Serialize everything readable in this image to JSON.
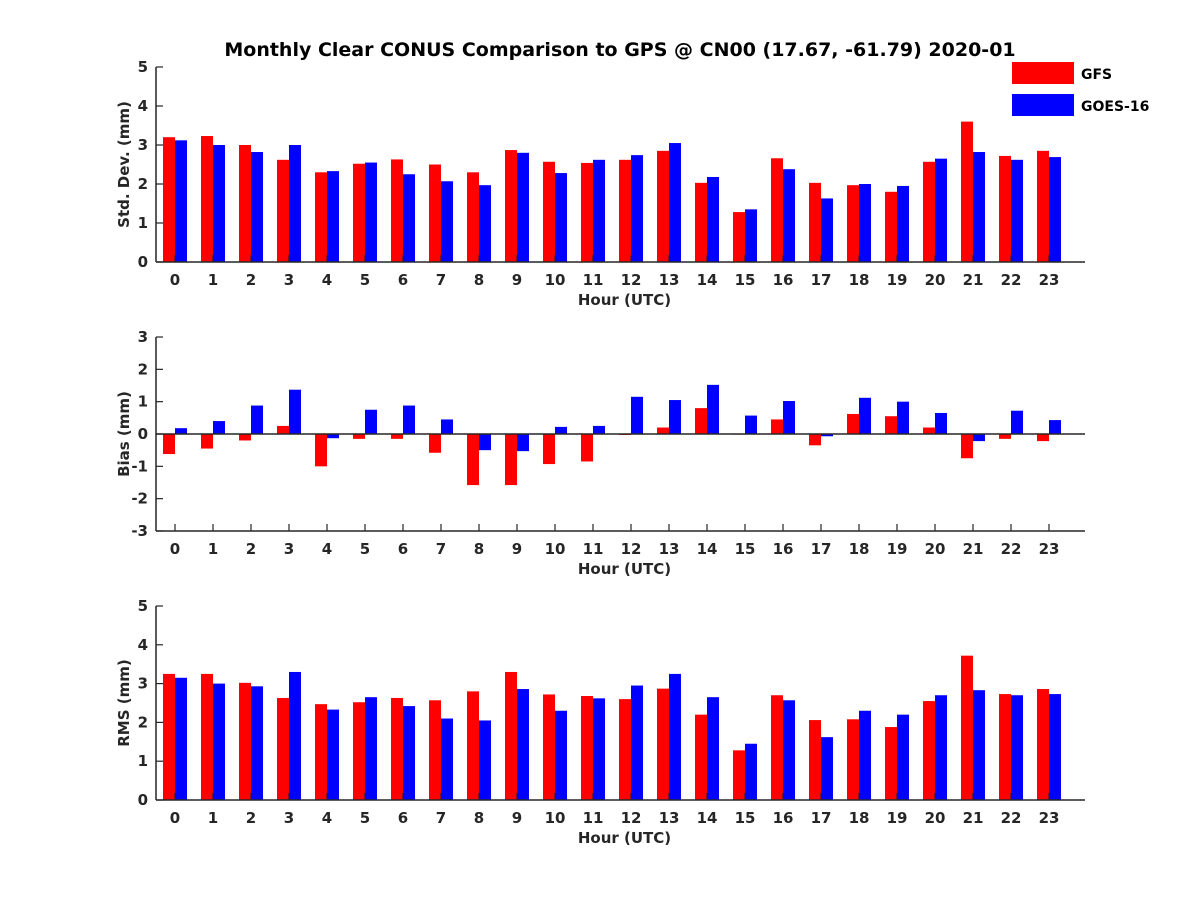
{
  "title": "Monthly Clear CONUS Comparison to GPS @ CN00 (17.67, -61.79) 2020-01",
  "legend": {
    "placement": "top-right",
    "entries": [
      "GFS",
      "GOES-16"
    ]
  },
  "colors": {
    "GFS": "#ff0000",
    "GOES-16": "#0000ff",
    "axis": "#262626"
  },
  "chart_data": [
    {
      "type": "bar",
      "xlabel": "Hour (UTC)",
      "ylabel": "Std. Dev. (mm)",
      "ylim": [
        0,
        5
      ],
      "yticks": [
        "0",
        "1",
        "2",
        "3",
        "4",
        "5"
      ],
      "categories": [
        "0",
        "1",
        "2",
        "3",
        "4",
        "5",
        "6",
        "7",
        "8",
        "9",
        "10",
        "11",
        "12",
        "13",
        "14",
        "15",
        "16",
        "17",
        "18",
        "19",
        "20",
        "21",
        "22",
        "23"
      ],
      "series": [
        {
          "name": "GFS",
          "values": [
            3.2,
            3.23,
            3.0,
            2.62,
            2.3,
            2.52,
            2.63,
            2.5,
            2.3,
            2.87,
            2.57,
            2.54,
            2.62,
            2.85,
            2.03,
            1.28,
            2.66,
            2.03,
            1.97,
            1.8,
            2.57,
            3.6,
            2.72,
            2.85
          ]
        },
        {
          "name": "GOES-16",
          "values": [
            3.12,
            3.0,
            2.82,
            3.0,
            2.33,
            2.55,
            2.25,
            2.07,
            1.97,
            2.8,
            2.28,
            2.62,
            2.74,
            3.05,
            2.18,
            1.35,
            2.38,
            1.63,
            2.0,
            1.95,
            2.65,
            2.82,
            2.62,
            2.69
          ]
        }
      ]
    },
    {
      "type": "bar",
      "xlabel": "Hour (UTC)",
      "ylabel": "Bias (mm)",
      "ylim": [
        -3,
        3
      ],
      "yticks": [
        "-3",
        "-2",
        "-1",
        "0",
        "1",
        "2",
        "3"
      ],
      "categories": [
        "0",
        "1",
        "2",
        "3",
        "4",
        "5",
        "6",
        "7",
        "8",
        "9",
        "10",
        "11",
        "12",
        "13",
        "14",
        "15",
        "16",
        "17",
        "18",
        "19",
        "20",
        "21",
        "22",
        "23"
      ],
      "series": [
        {
          "name": "GFS",
          "values": [
            -0.62,
            -0.45,
            -0.2,
            0.25,
            -1.0,
            -0.15,
            -0.15,
            -0.58,
            -1.58,
            -1.58,
            -0.93,
            -0.85,
            -0.03,
            0.2,
            0.8,
            0.0,
            0.45,
            -0.35,
            0.62,
            0.55,
            0.2,
            -0.75,
            -0.15,
            -0.22
          ]
        },
        {
          "name": "GOES-16",
          "values": [
            0.18,
            0.4,
            0.88,
            1.37,
            -0.13,
            0.75,
            0.88,
            0.45,
            -0.5,
            -0.53,
            0.22,
            0.25,
            1.15,
            1.05,
            1.52,
            0.57,
            1.02,
            -0.07,
            1.12,
            1.0,
            0.65,
            -0.22,
            0.72,
            0.43
          ]
        }
      ]
    },
    {
      "type": "bar",
      "xlabel": "Hour (UTC)",
      "ylabel": "RMS (mm)",
      "ylim": [
        0,
        5
      ],
      "yticks": [
        "0",
        "1",
        "2",
        "3",
        "4",
        "5"
      ],
      "categories": [
        "0",
        "1",
        "2",
        "3",
        "4",
        "5",
        "6",
        "7",
        "8",
        "9",
        "10",
        "11",
        "12",
        "13",
        "14",
        "15",
        "16",
        "17",
        "18",
        "19",
        "20",
        "21",
        "22",
        "23"
      ],
      "series": [
        {
          "name": "GFS",
          "values": [
            3.25,
            3.25,
            3.02,
            2.63,
            2.47,
            2.52,
            2.63,
            2.57,
            2.8,
            3.3,
            2.72,
            2.68,
            2.6,
            2.87,
            2.2,
            1.28,
            2.7,
            2.06,
            2.08,
            1.88,
            2.55,
            3.72,
            2.73,
            2.86
          ]
        },
        {
          "name": "GOES-16",
          "values": [
            3.15,
            3.0,
            2.93,
            3.3,
            2.33,
            2.65,
            2.42,
            2.1,
            2.05,
            2.86,
            2.3,
            2.62,
            2.95,
            3.25,
            2.65,
            1.45,
            2.57,
            1.62,
            2.3,
            2.2,
            2.7,
            2.83,
            2.7,
            2.73
          ]
        }
      ]
    }
  ]
}
